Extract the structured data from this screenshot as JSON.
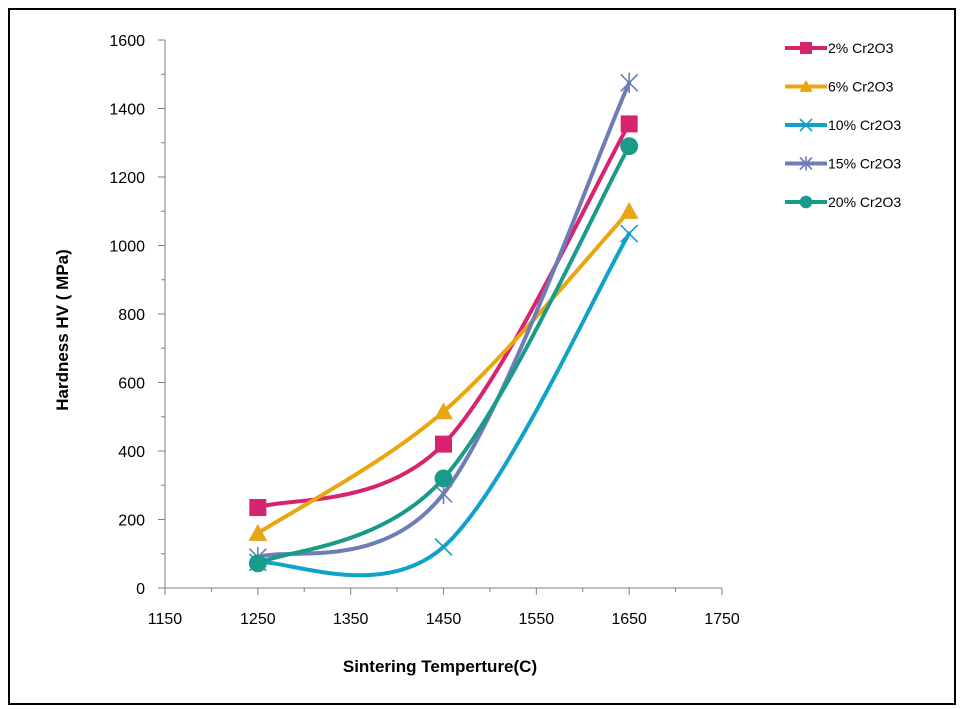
{
  "chart_data": {
    "type": "line",
    "xlabel": "Sintering Temperture(C)",
    "ylabel": "Hardness  HV ( MPa)",
    "xlim": [
      1150,
      1750
    ],
    "ylim": [
      0,
      1600
    ],
    "xticks": [
      1150,
      1250,
      1350,
      1450,
      1550,
      1650,
      1750
    ],
    "yticks": [
      0,
      200,
      400,
      600,
      800,
      1000,
      1200,
      1400,
      1600
    ],
    "grid": false,
    "smoothed": true,
    "legend_position": "right",
    "x": [
      1250,
      1450,
      1650
    ],
    "series": [
      {
        "name": "2% Cr2O3",
        "values": [
          235,
          420,
          1355
        ],
        "color": "#D6246E",
        "marker": "square"
      },
      {
        "name": "6% Cr2O3",
        "values": [
          160,
          515,
          1100
        ],
        "color": "#E8A610",
        "marker": "triangle"
      },
      {
        "name": "10% Cr2O3",
        "values": [
          75,
          120,
          1035
        ],
        "color": "#10A2C8",
        "marker": "x"
      },
      {
        "name": "15% Cr2O3",
        "values": [
          90,
          275,
          1475
        ],
        "color": "#6E7DB6",
        "marker": "star"
      },
      {
        "name": "20% Cr2O3",
        "values": [
          72,
          320,
          1290
        ],
        "color": "#1A9B8A",
        "marker": "circle"
      }
    ]
  }
}
